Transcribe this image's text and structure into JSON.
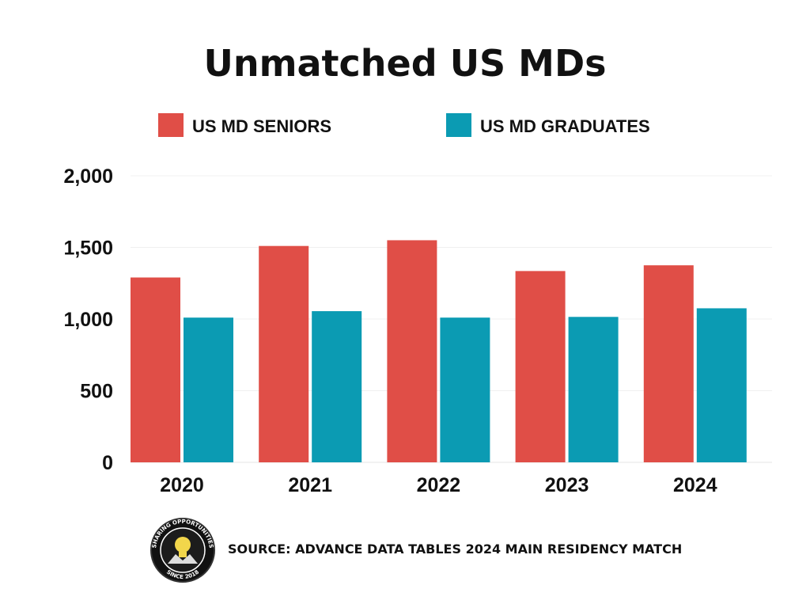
{
  "chart_data": {
    "type": "bar",
    "title": "Unmatched US MDs",
    "categories": [
      "2020",
      "2021",
      "2022",
      "2023",
      "2024"
    ],
    "series": [
      {
        "name": "US MD SENIORS",
        "color": "#e04e47",
        "values": [
          1290,
          1510,
          1550,
          1335,
          1375
        ]
      },
      {
        "name": "US MD GRADUATES",
        "color": "#0b9bb3",
        "values": [
          1010,
          1055,
          1010,
          1015,
          1075
        ]
      }
    ],
    "yticks": [
      "0",
      "500",
      "1,000",
      "1,500",
      "2,000"
    ],
    "ylim": [
      0,
      2000
    ],
    "grid": true,
    "legend": "top"
  },
  "source": "SOURCE: ADVANCE DATA TABLES 2024 MAIN RESIDENCY MATCH",
  "logo": {
    "icon": "lightbulb-icon",
    "top_text": "SHARING OPPORTUNITIES",
    "bottom_text": "SINCE 2018"
  }
}
